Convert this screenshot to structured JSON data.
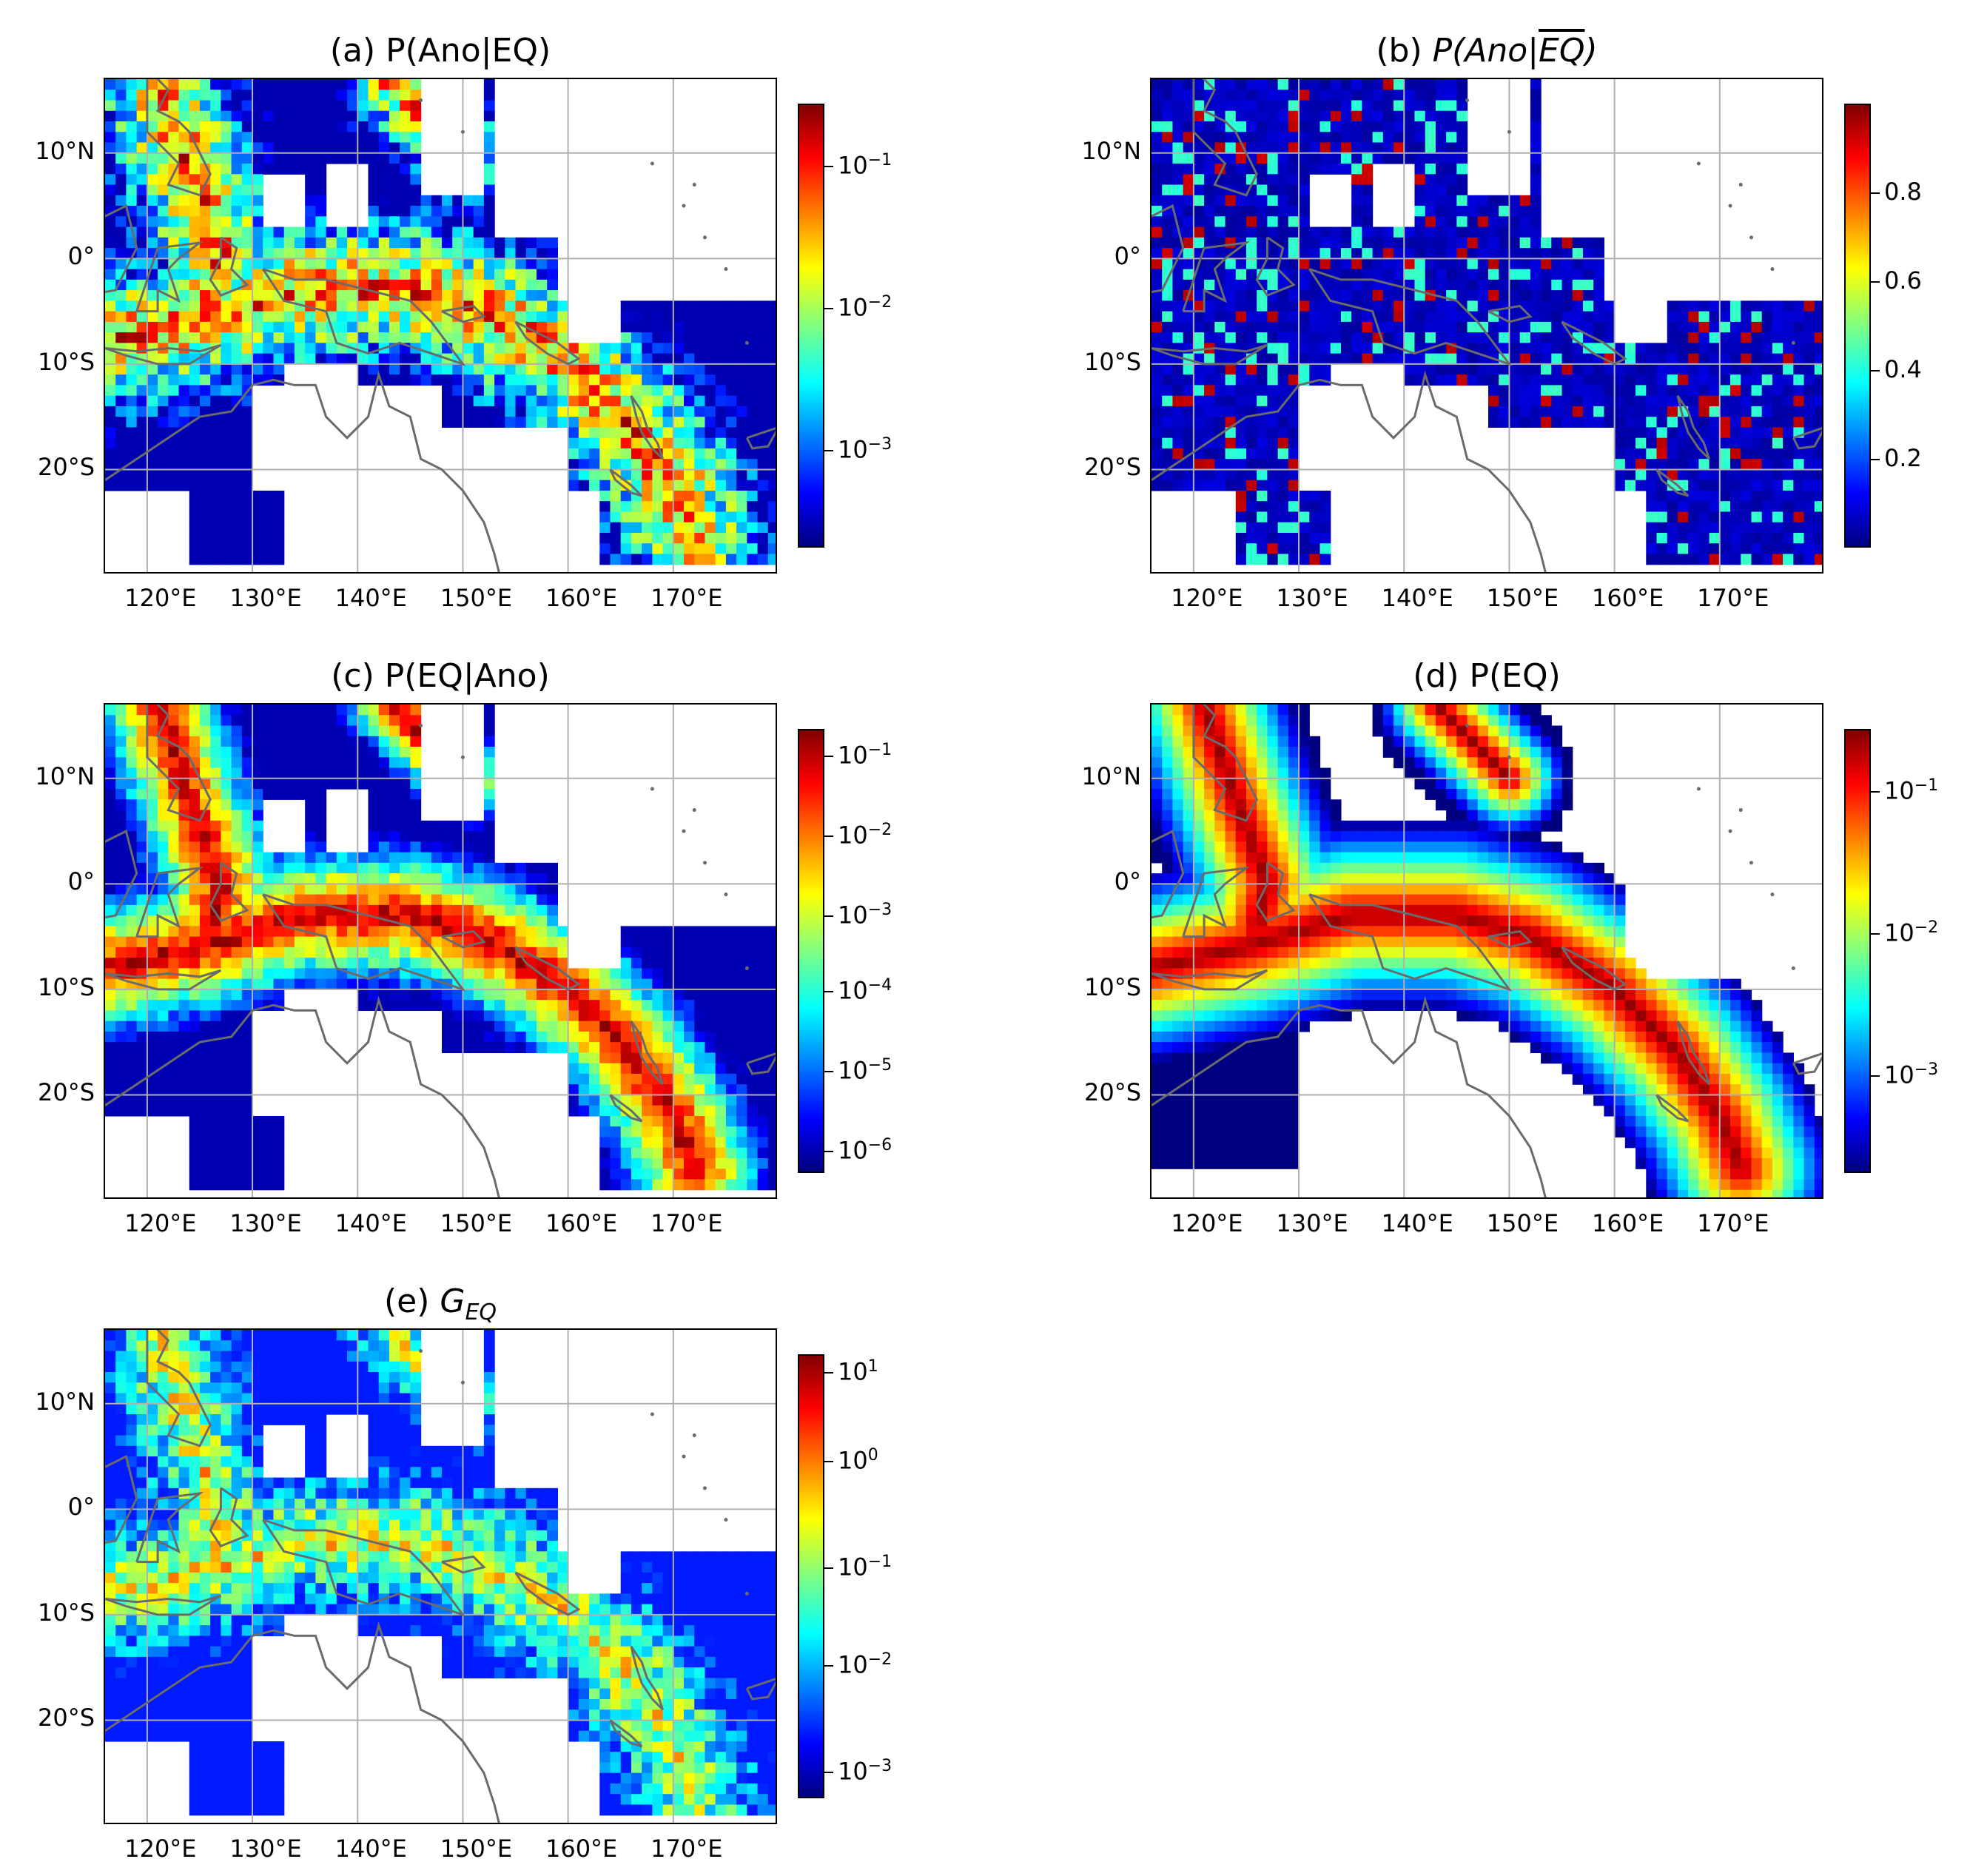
{
  "panels": [
    {
      "id": "a",
      "title_prefix": "(a) ",
      "title_main": "P(Ano|EQ)",
      "colorbar": {
        "scale": "log",
        "ticks": [
          "10",
          "10",
          "10"
        ],
        "tick_exps": [
          "−1",
          "−2",
          "−3"
        ]
      },
      "palette": "mixed"
    },
    {
      "id": "b",
      "title_prefix": "(b) ",
      "title_italic_a": "P(Ano|",
      "title_overline": "EQ",
      "title_italic_b": ")",
      "colorbar": {
        "scale": "linear",
        "ticks": [
          "0.8",
          "0.6",
          "0.4",
          "0.2"
        ]
      },
      "palette": "low"
    },
    {
      "id": "c",
      "title_prefix": "(c) ",
      "title_main": "P(EQ|Ano)",
      "colorbar": {
        "scale": "log",
        "ticks": [
          "10",
          "10",
          "10",
          "10",
          "10",
          "10"
        ],
        "tick_exps": [
          "−1",
          "−2",
          "−3",
          "−4",
          "−5",
          "−6"
        ]
      },
      "palette": "high"
    },
    {
      "id": "d",
      "title_prefix": "(d) ",
      "title_main": "P(EQ)",
      "colorbar": {
        "scale": "log",
        "ticks": [
          "10",
          "10",
          "10"
        ],
        "tick_exps": [
          "−1",
          "−2",
          "−3"
        ]
      },
      "palette": "smooth"
    },
    {
      "id": "e",
      "title_prefix": "(e) ",
      "title_italic_a": "G",
      "title_sub": "EQ",
      "colorbar": {
        "scale": "log",
        "ticks": [
          "10",
          "10",
          "10",
          "10",
          "10"
        ],
        "tick_exps": [
          "1",
          "0",
          "−1",
          "−2",
          "−3"
        ]
      },
      "palette": "mid"
    }
  ],
  "axes": {
    "lat_labels": [
      "10°N",
      "0°",
      "10°S",
      "20°S"
    ],
    "lon_labels": [
      "120°E",
      "130°E",
      "140°E",
      "150°E",
      "160°E",
      "170°E"
    ]
  },
  "colormap": "jet",
  "coastline_color": "#6b6b6b",
  "grid_color": "#b0b0b0"
}
